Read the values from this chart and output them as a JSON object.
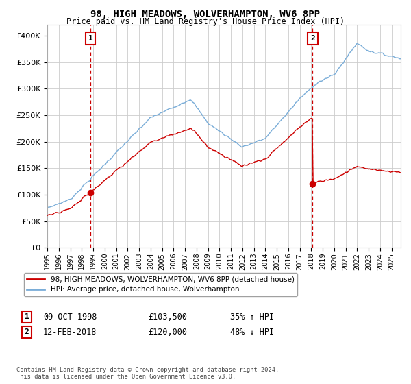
{
  "title": "98, HIGH MEADOWS, WOLVERHAMPTON, WV6 8PP",
  "subtitle": "Price paid vs. HM Land Registry's House Price Index (HPI)",
  "legend_line1": "98, HIGH MEADOWS, WOLVERHAMPTON, WV6 8PP (detached house)",
  "legend_line2": "HPI: Average price, detached house, Wolverhampton",
  "footnote": "Contains HM Land Registry data © Crown copyright and database right 2024.\nThis data is licensed under the Open Government Licence v3.0.",
  "annotation1_label": "1",
  "annotation1_date": "09-OCT-1998",
  "annotation1_price": "£103,500",
  "annotation1_hpi": "35% ↑ HPI",
  "annotation2_label": "2",
  "annotation2_date": "12-FEB-2018",
  "annotation2_price": "£120,000",
  "annotation2_hpi": "48% ↓ HPI",
  "sale1_year": 1998.77,
  "sale1_price": 103500,
  "sale2_year": 2018.12,
  "sale2_price": 120000,
  "hpi_color": "#7aadd8",
  "price_color": "#cc0000",
  "background_color": "#ffffff",
  "grid_color": "#cccccc",
  "ylim": [
    0,
    420000
  ],
  "yticks": [
    0,
    50000,
    100000,
    150000,
    200000,
    250000,
    300000,
    350000,
    400000
  ],
  "xlim_start": 1995.0,
  "xlim_end": 2025.8
}
